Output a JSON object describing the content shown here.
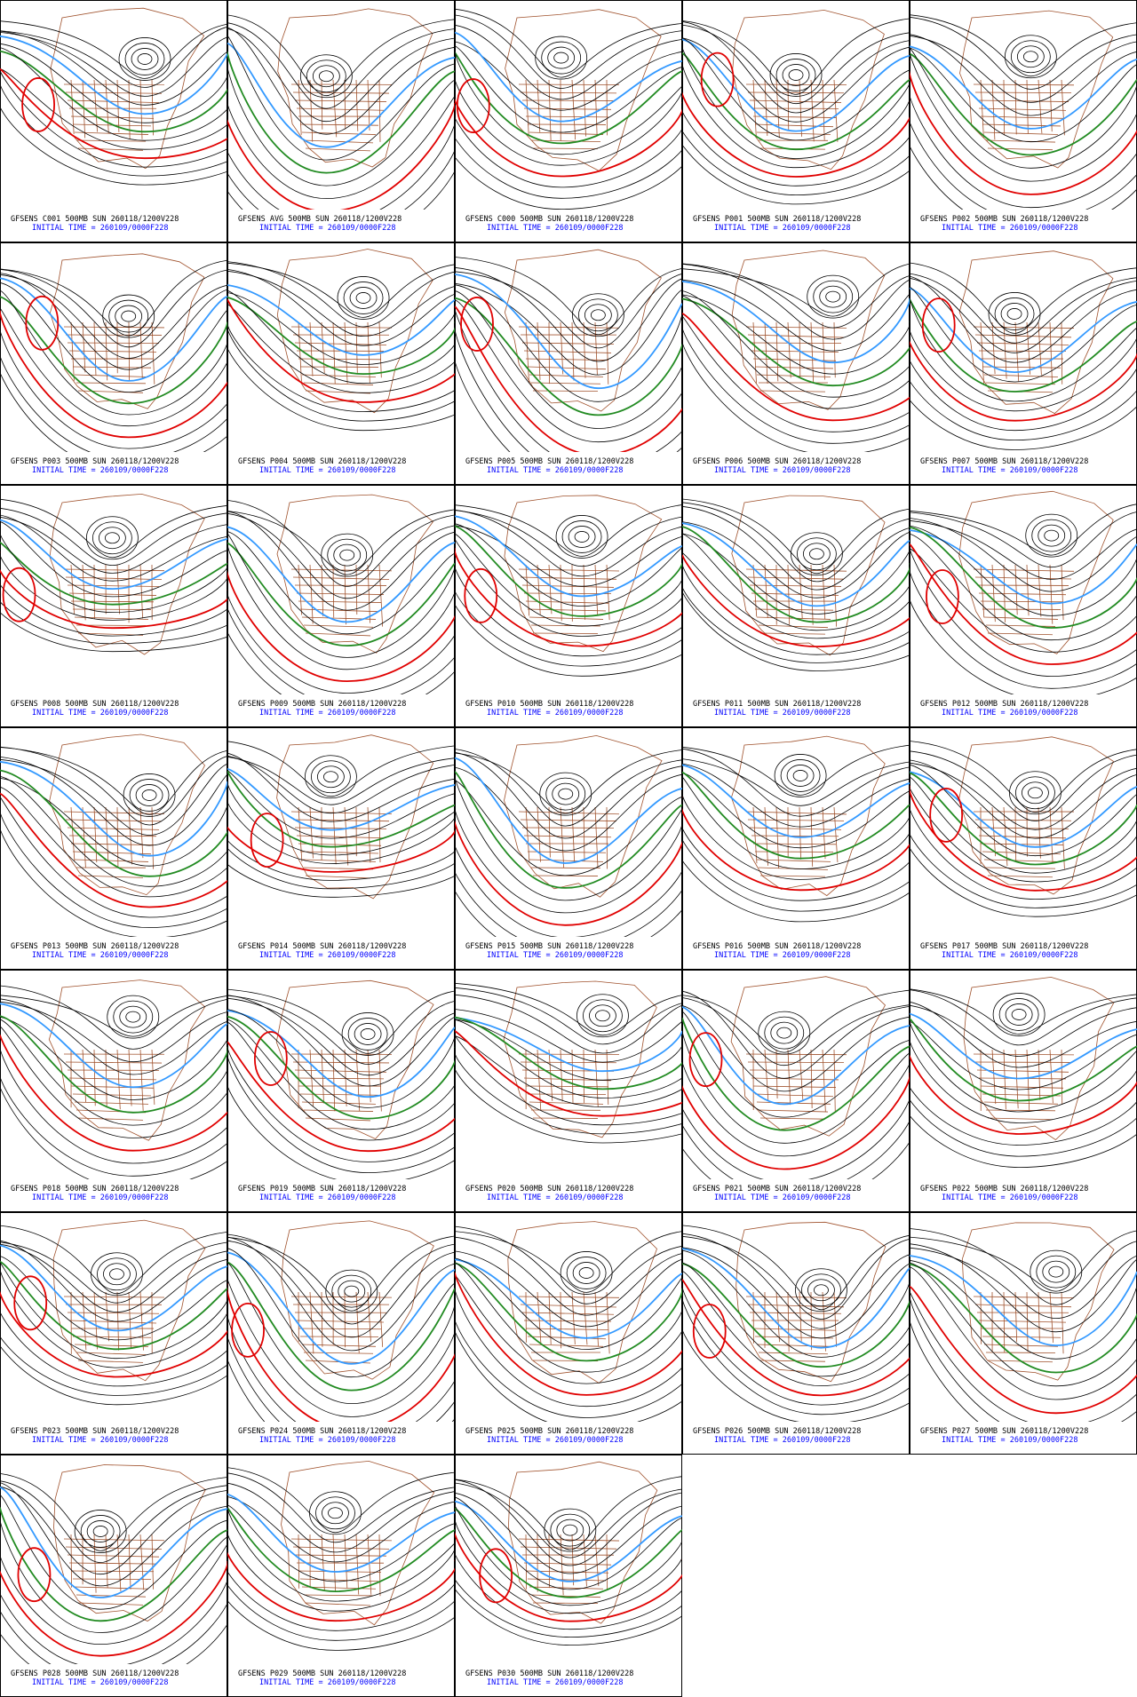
{
  "panels": [
    {
      "title": "GFSENS C001 500MB SUN 260118/1200V228",
      "subtitle": "INITIAL TIME = 260109/0000F228"
    },
    {
      "title": "GFSENS AVG 500MB SUN 260118/1200V228",
      "subtitle": "INITIAL TIME = 260109/0000F228"
    },
    {
      "title": "GFSENS C000 500MB SUN 260118/1200V228",
      "subtitle": "INITIAL TIME = 260109/0000F228"
    },
    {
      "title": "GFSENS P001 500MB SUN 260118/1200V228",
      "subtitle": "INITIAL TIME = 260109/0000F228"
    },
    {
      "title": "GFSENS P002 500MB SUN 260118/1200V228",
      "subtitle": "INITIAL TIME = 260109/0000F228"
    },
    {
      "title": "GFSENS P003 500MB SUN 260118/1200V228",
      "subtitle": "INITIAL TIME = 260109/0000F228"
    },
    {
      "title": "GFSENS P004 500MB SUN 260118/1200V228",
      "subtitle": "INITIAL TIME = 260109/0000F228"
    },
    {
      "title": "GFSENS P005 500MB SUN 260118/1200V228",
      "subtitle": "INITIAL TIME = 260109/0000F228"
    },
    {
      "title": "GFSENS P006 500MB SUN 260118/1200V228",
      "subtitle": "INITIAL TIME = 260109/0000F228"
    },
    {
      "title": "GFSENS P007 500MB SUN 260118/1200V228",
      "subtitle": "INITIAL TIME = 260109/0000F228"
    },
    {
      "title": "GFSENS P008 500MB SUN 260118/1200V228",
      "subtitle": "INITIAL TIME = 260109/0000F228"
    },
    {
      "title": "GFSENS P009 500MB SUN 260118/1200V228",
      "subtitle": "INITIAL TIME = 260109/0000F228"
    },
    {
      "title": "GFSENS P010 500MB SUN 260118/1200V228",
      "subtitle": "INITIAL TIME = 260109/0000F228"
    },
    {
      "title": "GFSENS P011 500MB SUN 260118/1200V228",
      "subtitle": "INITIAL TIME = 260109/0000F228"
    },
    {
      "title": "GFSENS P012 500MB SUN 260118/1200V228",
      "subtitle": "INITIAL TIME = 260109/0000F228"
    },
    {
      "title": "GFSENS P013 500MB SUN 260118/1200V228",
      "subtitle": "INITIAL TIME = 260109/0000F228"
    },
    {
      "title": "GFSENS P014 500MB SUN 260118/1200V228",
      "subtitle": "INITIAL TIME = 260109/0000F228"
    },
    {
      "title": "GFSENS P015 500MB SUN 260118/1200V228",
      "subtitle": "INITIAL TIME = 260109/0000F228"
    },
    {
      "title": "GFSENS P016 500MB SUN 260118/1200V228",
      "subtitle": "INITIAL TIME = 260109/0000F228"
    },
    {
      "title": "GFSENS P017 500MB SUN 260118/1200V228",
      "subtitle": "INITIAL TIME = 260109/0000F228"
    },
    {
      "title": "GFSENS P018 500MB SUN 260118/1200V228",
      "subtitle": "INITIAL TIME = 260109/0000F228"
    },
    {
      "title": "GFSENS P019 500MB SUN 260118/1200V228",
      "subtitle": "INITIAL TIME = 260109/0000F228"
    },
    {
      "title": "GFSENS P020 500MB SUN 260118/1200V228",
      "subtitle": "INITIAL TIME = 260109/0000F228"
    },
    {
      "title": "GFSENS P021 500MB SUN 260118/1200V228",
      "subtitle": "INITIAL TIME = 260109/0000F228"
    },
    {
      "title": "GFSENS P022 500MB SUN 260118/1200V228",
      "subtitle": "INITIAL TIME = 260109/0000F228"
    },
    {
      "title": "GFSENS P023 500MB SUN 260118/1200V228",
      "subtitle": "INITIAL TIME = 260109/0000F228"
    },
    {
      "title": "GFSENS P024 500MB SUN 260118/1200V228",
      "subtitle": "INITIAL TIME = 260109/0000F228"
    },
    {
      "title": "GFSENS P025 500MB SUN 260118/1200V228",
      "subtitle": "INITIAL TIME = 260109/0000F228"
    },
    {
      "title": "GFSENS P026 500MB SUN 260118/1200V228",
      "subtitle": "INITIAL TIME = 260109/0000F228"
    },
    {
      "title": "GFSENS P027 500MB SUN 260118/1200V228",
      "subtitle": "INITIAL TIME = 260109/0000F228"
    },
    {
      "title": "GFSENS P028 500MB SUN 260118/1200V228",
      "subtitle": "INITIAL TIME = 260109/0000F228"
    },
    {
      "title": "GFSENS P029 500MB SUN 260118/1200V228",
      "subtitle": "INITIAL TIME = 260109/0000F228"
    },
    {
      "title": "GFSENS P030 500MB SUN 260118/1200V228",
      "subtitle": "INITIAL TIME = 260109/0000F228"
    }
  ]
}
